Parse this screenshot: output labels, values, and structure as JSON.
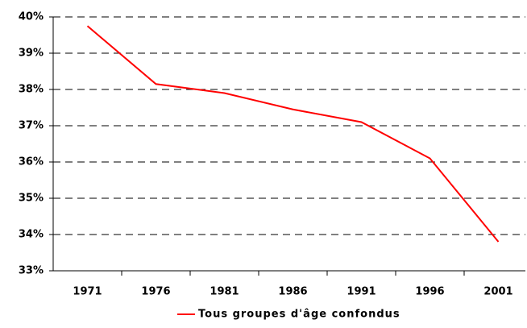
{
  "chart_data": {
    "type": "line",
    "categories": [
      "1971",
      "1976",
      "1981",
      "1986",
      "1991",
      "1996",
      "2001"
    ],
    "series": [
      {
        "name": "Tous groupes d'âge confondus",
        "color": "#ff0000",
        "values": [
          39.75,
          38.15,
          37.9,
          37.45,
          37.1,
          36.1,
          33.8
        ]
      }
    ],
    "ylim": [
      33,
      40
    ],
    "yticks": [
      {
        "value": 33,
        "label": "33%"
      },
      {
        "value": 34,
        "label": "34%"
      },
      {
        "value": 35,
        "label": "35%"
      },
      {
        "value": 36,
        "label": "36%"
      },
      {
        "value": 37,
        "label": "37%"
      },
      {
        "value": 38,
        "label": "38%"
      },
      {
        "value": 39,
        "label": "39%"
      },
      {
        "value": 40,
        "label": "40%"
      }
    ],
    "grid": true
  }
}
